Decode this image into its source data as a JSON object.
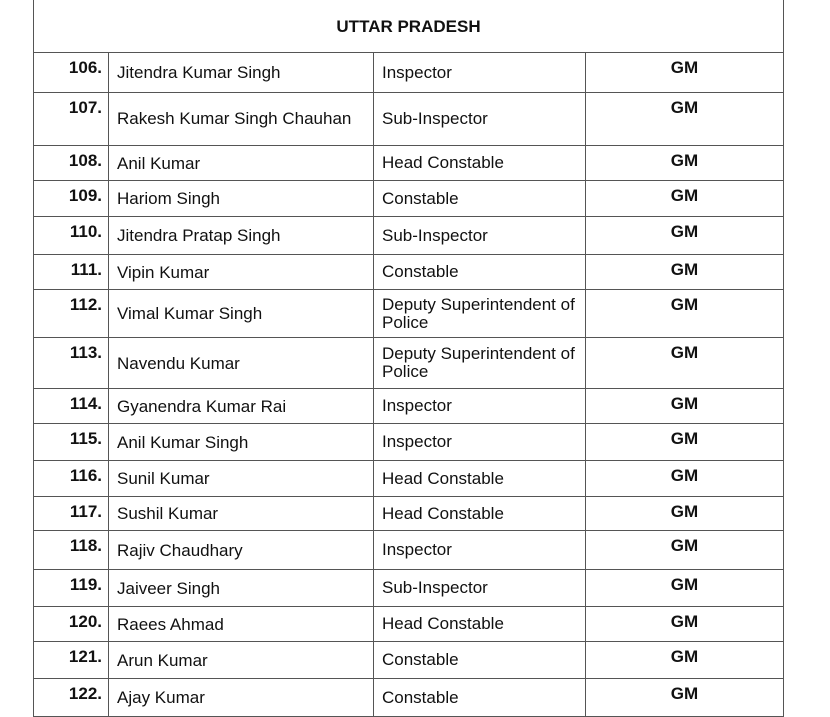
{
  "state": "UTTAR PRADESH",
  "rows": [
    {
      "no": "106.",
      "name": "Jitendra Kumar Singh",
      "rank": "Inspector",
      "award": "GM"
    },
    {
      "no": "107.",
      "name": "Rakesh Kumar Singh Chauhan",
      "rank": "Sub-Inspector",
      "award": "GM"
    },
    {
      "no": "108.",
      "name": "Anil Kumar",
      "rank": "Head Constable",
      "award": "GM"
    },
    {
      "no": "109.",
      "name": "Hariom Singh",
      "rank": "Constable",
      "award": "GM"
    },
    {
      "no": "110.",
      "name": "Jitendra Pratap Singh",
      "rank": "Sub-Inspector",
      "award": "GM"
    },
    {
      "no": "111.",
      "name": "Vipin Kumar",
      "rank": "Constable",
      "award": "GM"
    },
    {
      "no": "112.",
      "name": "Vimal Kumar Singh",
      "rank": "Deputy Superintendent of Police",
      "award": "GM"
    },
    {
      "no": "113.",
      "name": "Navendu Kumar",
      "rank": "Deputy Superintendent of Police",
      "award": "GM"
    },
    {
      "no": "114.",
      "name": "Gyanendra Kumar Rai",
      "rank": "Inspector",
      "award": "GM"
    },
    {
      "no": "115.",
      "name": "Anil Kumar Singh",
      "rank": "Inspector",
      "award": "GM"
    },
    {
      "no": "116.",
      "name": "Sunil Kumar",
      "rank": "Head Constable",
      "award": "GM"
    },
    {
      "no": "117.",
      "name": "Sushil Kumar",
      "rank": "Head Constable",
      "award": "GM"
    },
    {
      "no": "118.",
      "name": "Rajiv Chaudhary",
      "rank": "Inspector",
      "award": "GM"
    },
    {
      "no": "119.",
      "name": "Jaiveer Singh",
      "rank": "Sub-Inspector",
      "award": "GM"
    },
    {
      "no": "120.",
      "name": "Raees Ahmad",
      "rank": "Head Constable",
      "award": "GM"
    },
    {
      "no": "121.",
      "name": "Arun Kumar",
      "rank": "Constable",
      "award": "GM"
    },
    {
      "no": "122.",
      "name": "Ajay Kumar",
      "rank": "Constable",
      "award": "GM"
    }
  ]
}
